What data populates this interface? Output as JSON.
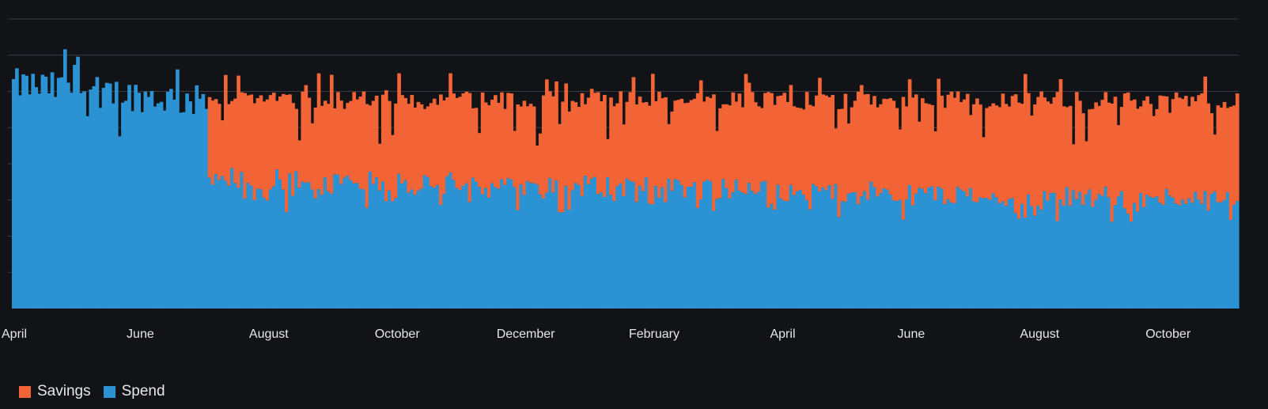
{
  "chart_data": {
    "type": "bar",
    "stacked": true,
    "bars_per_month": 20,
    "month_labels": [
      "April",
      "June",
      "August",
      "October",
      "December",
      "February",
      "April",
      "June",
      "August",
      "October"
    ],
    "month_ticks_every": 2,
    "n_bars": 382,
    "spend_only_until_bar": 61,
    "y_max": 8,
    "y_gridlines": [
      1,
      2,
      3,
      4,
      5,
      6,
      7,
      8
    ],
    "grid": true,
    "legend_position": "bottom-left",
    "series": [
      {
        "name": "Savings",
        "color": "#f26435"
      },
      {
        "name": "Spend",
        "color": "#2b93d4"
      }
    ],
    "spend_only_segment": {
      "typical_total": 5.95,
      "peak_total": 7.3,
      "comment_free": true
    },
    "stacked_segment": {
      "spend_base_start": 3.6,
      "spend_base_end": 3.0,
      "total_start": 5.8,
      "total_end": 5.8,
      "peak_total": 6.5
    }
  },
  "colors": {
    "background": "#121317",
    "grid": "#3a3c44",
    "text": "#e6e7ea"
  }
}
